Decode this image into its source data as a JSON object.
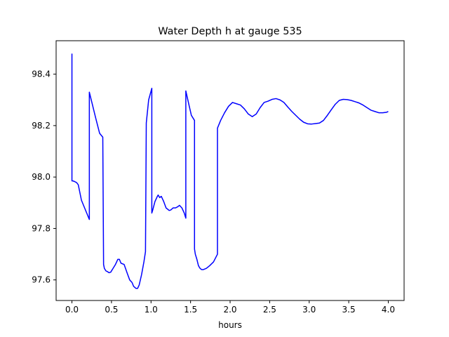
{
  "chart_data": {
    "type": "line",
    "title": "Water Depth h at gauge 535",
    "xlabel": "hours",
    "ylabel": "",
    "xlim": [
      -0.2,
      4.2
    ],
    "ylim": [
      97.52,
      98.53
    ],
    "xticks": [
      0.0,
      0.5,
      1.0,
      1.5,
      2.0,
      2.5,
      3.0,
      3.5,
      4.0
    ],
    "xtick_labels": [
      "0.0",
      "0.5",
      "1.0",
      "1.5",
      "2.0",
      "2.5",
      "3.0",
      "3.5",
      "4.0"
    ],
    "yticks": [
      97.6,
      97.8,
      98.0,
      98.2,
      98.4
    ],
    "ytick_labels": [
      "97.6",
      "97.8",
      "98.0",
      "98.2",
      "98.4"
    ],
    "grid": false,
    "line_color": "#0000ff",
    "series": [
      {
        "name": "",
        "x": [
          0.0,
          0.0,
          0.01,
          0.03,
          0.06,
          0.08,
          0.12,
          0.16,
          0.22,
          0.22,
          0.26,
          0.3,
          0.35,
          0.39,
          0.4,
          0.41,
          0.43,
          0.45,
          0.47,
          0.49,
          0.52,
          0.55,
          0.58,
          0.6,
          0.62,
          0.66,
          0.7,
          0.73,
          0.76,
          0.78,
          0.81,
          0.83,
          0.85,
          0.88,
          0.91,
          0.93,
          0.94,
          0.97,
          1.01,
          1.01,
          1.02,
          1.05,
          1.08,
          1.09,
          1.11,
          1.13,
          1.16,
          1.19,
          1.23,
          1.25,
          1.28,
          1.31,
          1.34,
          1.36,
          1.39,
          1.42,
          1.44,
          1.44,
          1.48,
          1.51,
          1.55,
          1.55,
          1.56,
          1.58,
          1.6,
          1.62,
          1.64,
          1.66,
          1.7,
          1.74,
          1.79,
          1.84,
          1.84,
          1.88,
          1.93,
          1.98,
          2.03,
          2.08,
          2.13,
          2.18,
          2.23,
          2.28,
          2.33,
          2.38,
          2.43,
          2.48,
          2.53,
          2.58,
          2.63,
          2.68,
          2.73,
          2.78,
          2.83,
          2.88,
          2.93,
          2.98,
          3.03,
          3.08,
          3.13,
          3.18,
          3.23,
          3.28,
          3.33,
          3.38,
          3.43,
          3.48,
          3.53,
          3.58,
          3.63,
          3.68,
          3.73,
          3.78,
          3.83,
          3.88,
          3.93,
          3.98,
          4.0
        ],
        "y": [
          98.48,
          97.985,
          97.985,
          97.983,
          97.978,
          97.97,
          97.91,
          97.88,
          97.835,
          98.33,
          98.28,
          98.23,
          98.17,
          98.155,
          97.66,
          97.645,
          97.635,
          97.632,
          97.628,
          97.63,
          97.645,
          97.66,
          97.68,
          97.68,
          97.665,
          97.66,
          97.625,
          97.6,
          97.59,
          97.575,
          97.567,
          97.567,
          97.58,
          97.62,
          97.67,
          97.71,
          98.21,
          98.3,
          98.345,
          97.86,
          97.87,
          97.905,
          97.925,
          97.93,
          97.92,
          97.925,
          97.905,
          97.88,
          97.87,
          97.872,
          97.88,
          97.88,
          97.885,
          97.89,
          97.88,
          97.86,
          97.84,
          98.335,
          98.28,
          98.24,
          98.22,
          97.72,
          97.7,
          97.68,
          97.655,
          97.645,
          97.64,
          97.64,
          97.645,
          97.655,
          97.67,
          97.7,
          98.19,
          98.22,
          98.25,
          98.275,
          98.29,
          98.285,
          98.28,
          98.265,
          98.245,
          98.235,
          98.245,
          98.27,
          98.29,
          98.295,
          98.302,
          98.305,
          98.3,
          98.29,
          98.272,
          98.255,
          98.24,
          98.225,
          98.213,
          98.207,
          98.206,
          98.208,
          98.21,
          98.22,
          98.24,
          98.262,
          98.283,
          98.298,
          98.302,
          98.301,
          98.298,
          98.293,
          98.288,
          98.28,
          98.27,
          98.26,
          98.255,
          98.25,
          98.25,
          98.252,
          98.255
        ]
      }
    ]
  }
}
